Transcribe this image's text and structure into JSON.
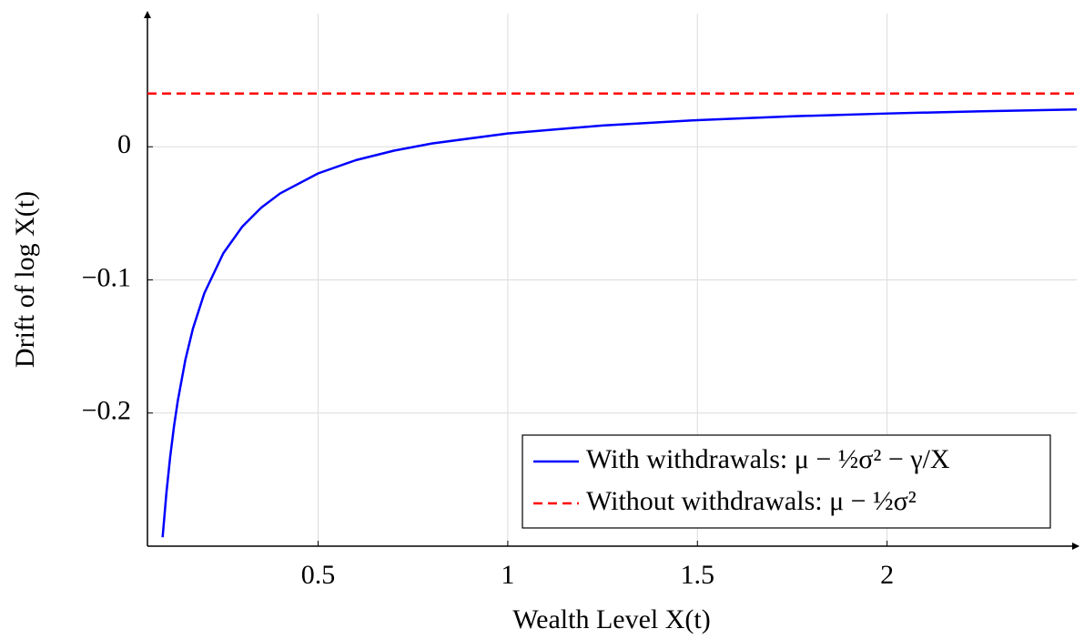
{
  "chart_data": {
    "type": "line",
    "xlabel": "Wealth Level X(t)",
    "ylabel": "Drift of log X(t)",
    "xlim": [
      0.05,
      2.5
    ],
    "ylim": [
      -0.3,
      0.1
    ],
    "xticks": [
      0.5,
      1,
      1.5,
      2
    ],
    "yticks": [
      {
        "value": -0.2,
        "label": "−0.2"
      },
      {
        "value": -0.1,
        "label": "−0.1"
      },
      0
    ],
    "grid": true,
    "legend": "lower right",
    "series": [
      {
        "name": "With withdrawals: μ − ½σ² − γ/X",
        "color": "#0000ff",
        "dashed": false,
        "x": [
          0.09,
          0.1,
          0.11,
          0.12,
          0.13,
          0.15,
          0.17,
          0.2,
          0.25,
          0.3,
          0.35,
          0.4,
          0.5,
          0.6,
          0.7,
          0.8,
          1,
          1.25,
          1.5,
          1.75,
          2,
          2.25,
          2.5
        ],
        "values": [
          -0.2933,
          -0.26,
          -0.2327,
          -0.21,
          -0.1908,
          -0.16,
          -0.1365,
          -0.11,
          -0.08,
          -0.06,
          -0.0457,
          -0.035,
          -0.02,
          -0.01,
          -0.0029,
          0.0025,
          0.01,
          0.016,
          0.02,
          0.0229,
          0.025,
          0.0267,
          0.028
        ]
      },
      {
        "name": "Without withdrawals: μ − ½σ²",
        "color": "#ff0000",
        "dashed": true,
        "x": [
          0.05,
          2.5
        ],
        "values": [
          0.04,
          0.04
        ]
      }
    ]
  }
}
